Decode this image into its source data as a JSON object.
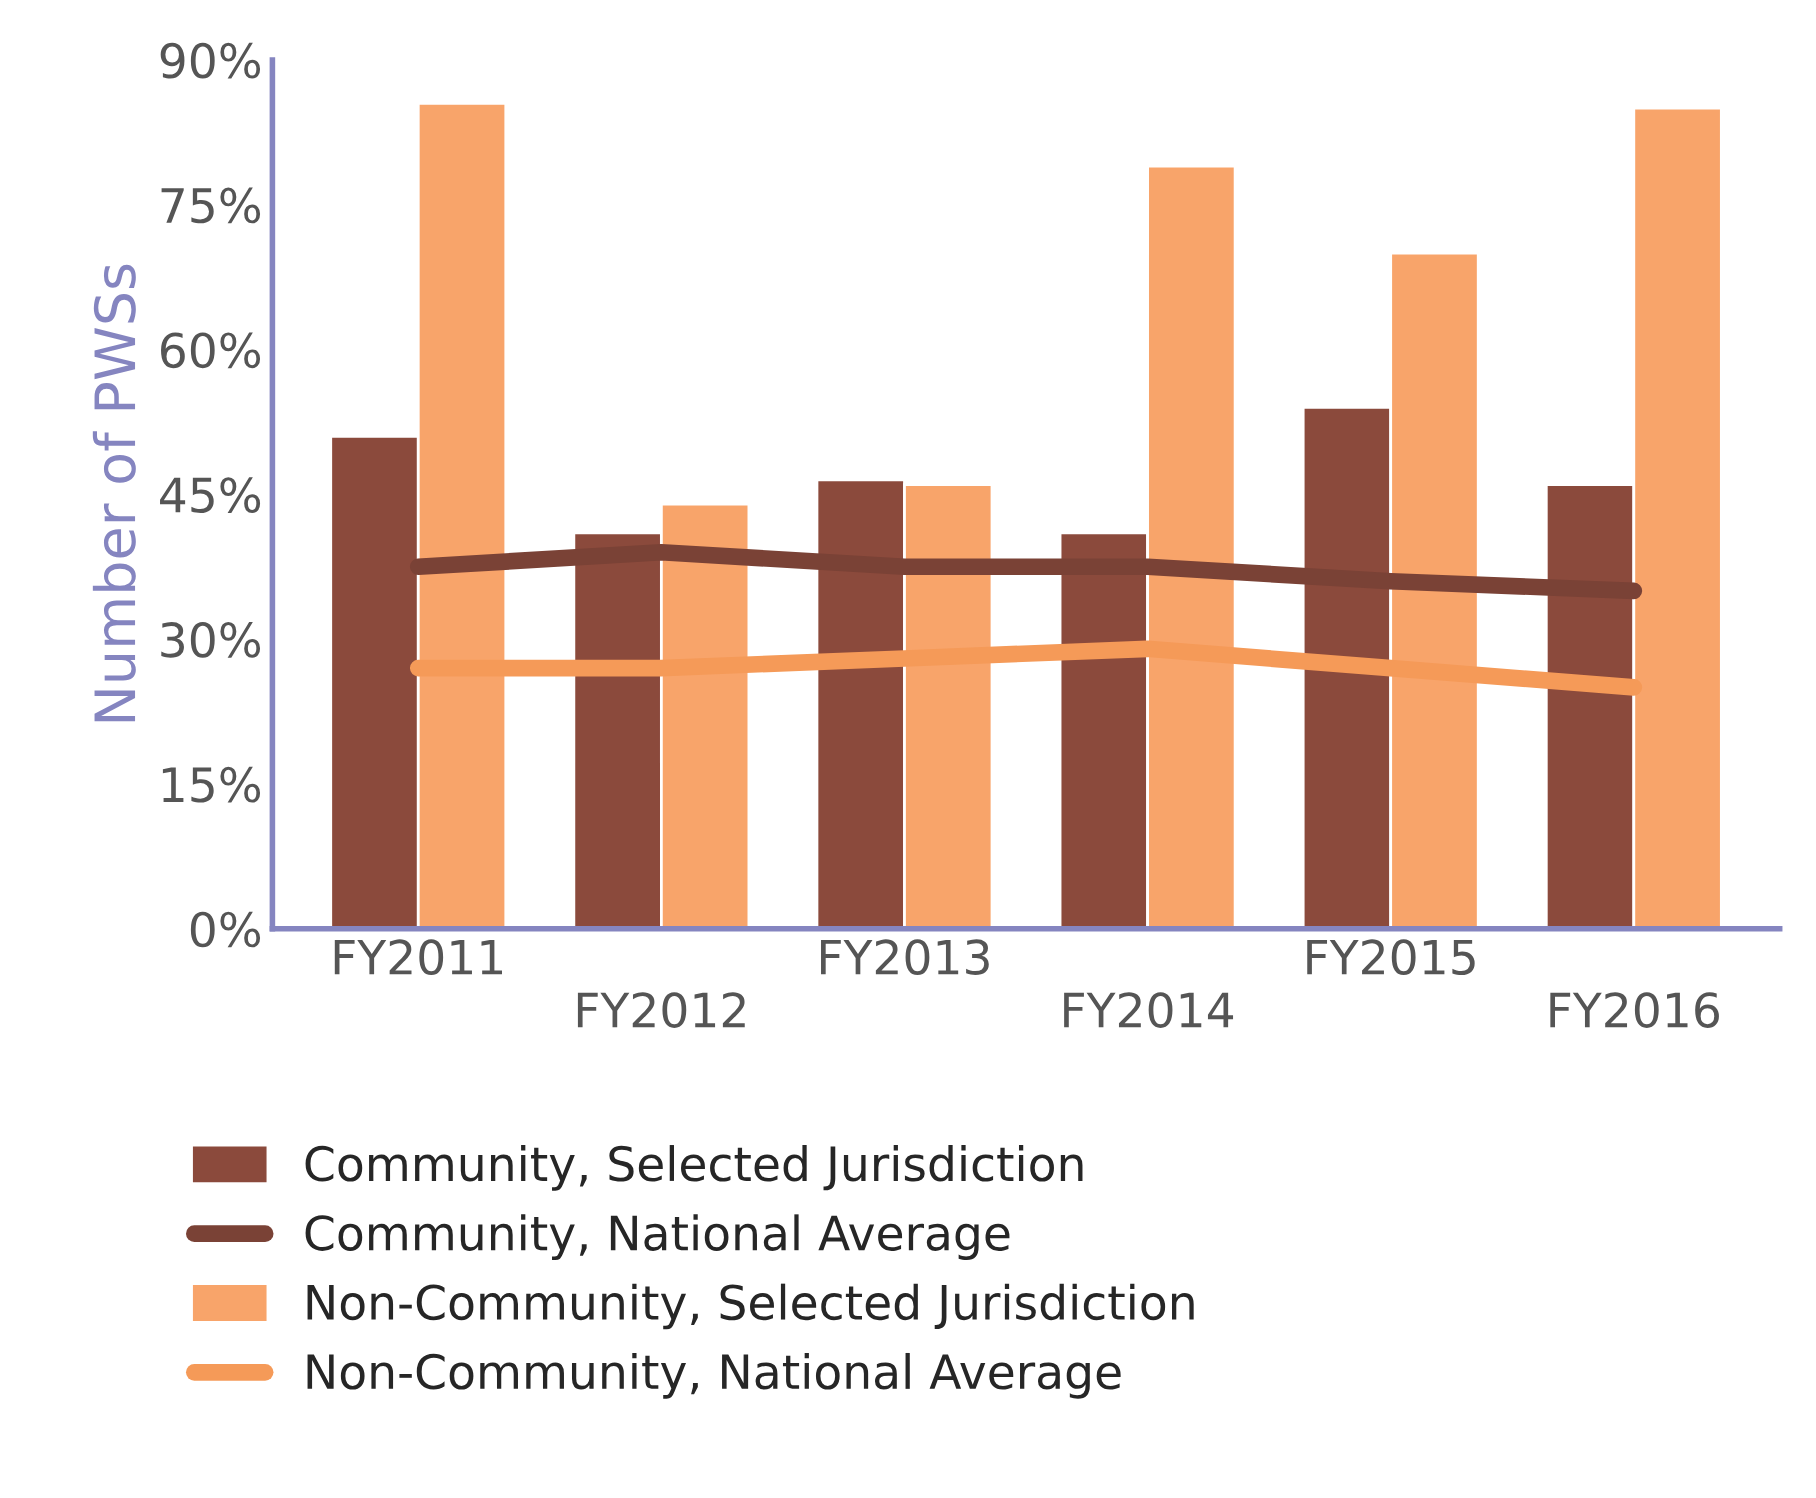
{
  "chart_data": {
    "type": "bar",
    "ylabel": "Number of PWSs",
    "categories": [
      "FY2011",
      "FY2012",
      "FY2013",
      "FY2014",
      "FY2015",
      "FY2016"
    ],
    "series": [
      {
        "name": "Community, Selected Jurisdiction",
        "color": "#8b4a3c",
        "values": [
          51,
          41,
          46.5,
          41,
          54,
          46
        ]
      },
      {
        "name": "Community, National Average",
        "type": "line",
        "color": "#7a4236",
        "values": [
          37.5,
          39,
          37.5,
          37.5,
          36,
          35
        ]
      },
      {
        "name": "Non-Community, Selected Jurisdiction",
        "color": "#f8a46a",
        "values": [
          85.5,
          44,
          46,
          79,
          70,
          85
        ]
      },
      {
        "name": "Non-Community, National Average",
        "type": "line",
        "color": "#f59a58",
        "values": [
          27,
          27,
          28,
          29,
          27,
          25
        ]
      }
    ],
    "ylim": [
      0,
      90
    ],
    "yticks": [
      {
        "value": 0,
        "label": "0%"
      },
      {
        "value": 15,
        "label": "15%"
      },
      {
        "value": 30,
        "label": "30%"
      },
      {
        "value": 45,
        "label": "45%"
      },
      {
        "value": 60,
        "label": "60%"
      },
      {
        "value": 75,
        "label": "75%"
      },
      {
        "value": 90,
        "label": "90%"
      }
    ],
    "grid": false,
    "legend": "bottom"
  }
}
